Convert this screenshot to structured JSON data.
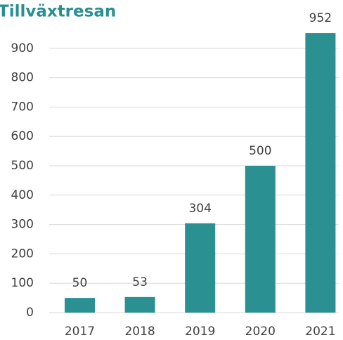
{
  "chart_data": {
    "type": "bar",
    "title": "Tillväxtresan",
    "categories": [
      "2017",
      "2018",
      "2019",
      "2020",
      "2021"
    ],
    "values": [
      50,
      53,
      304,
      500,
      952
    ],
    "color": "#2a9092",
    "ylim": [
      0,
      1000
    ],
    "yticks": [
      0,
      100,
      200,
      300,
      400,
      500,
      600,
      700,
      800,
      900
    ],
    "grid": true
  }
}
